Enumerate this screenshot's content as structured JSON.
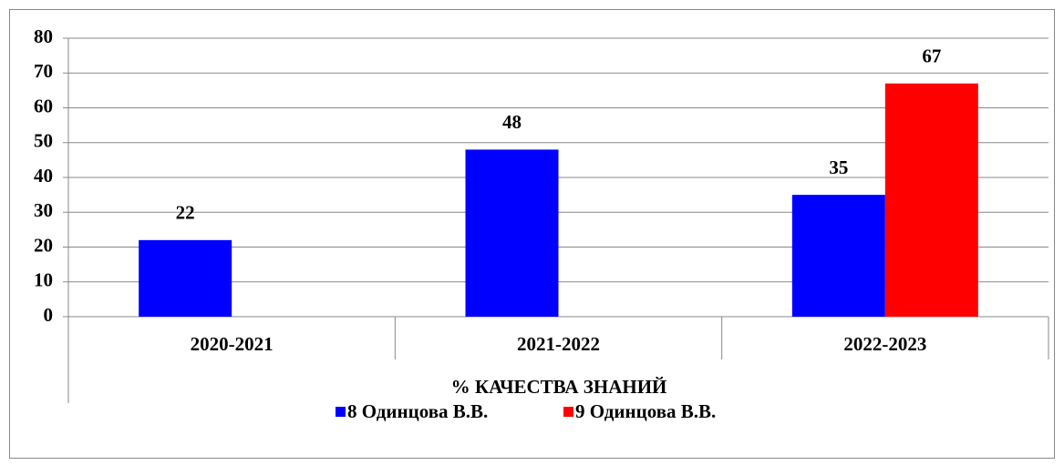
{
  "chart_data": {
    "type": "bar",
    "categories": [
      "2020-2021",
      "2021-2022",
      "2022-2023"
    ],
    "xlabel": "% КАЧЕСТВА ЗНАНИЙ",
    "series": [
      {
        "name": "8 Одинцова В.В.",
        "color": "#0000ff",
        "values": [
          22,
          48,
          35
        ]
      },
      {
        "name": "9 Одинцова В.В.",
        "color": "#ff0000",
        "values": [
          null,
          null,
          67
        ]
      }
    ],
    "ylim": [
      0,
      80
    ],
    "yticks": [
      0,
      10,
      20,
      30,
      40,
      50,
      60,
      70,
      80
    ],
    "grid": true,
    "legend": "bottom"
  }
}
